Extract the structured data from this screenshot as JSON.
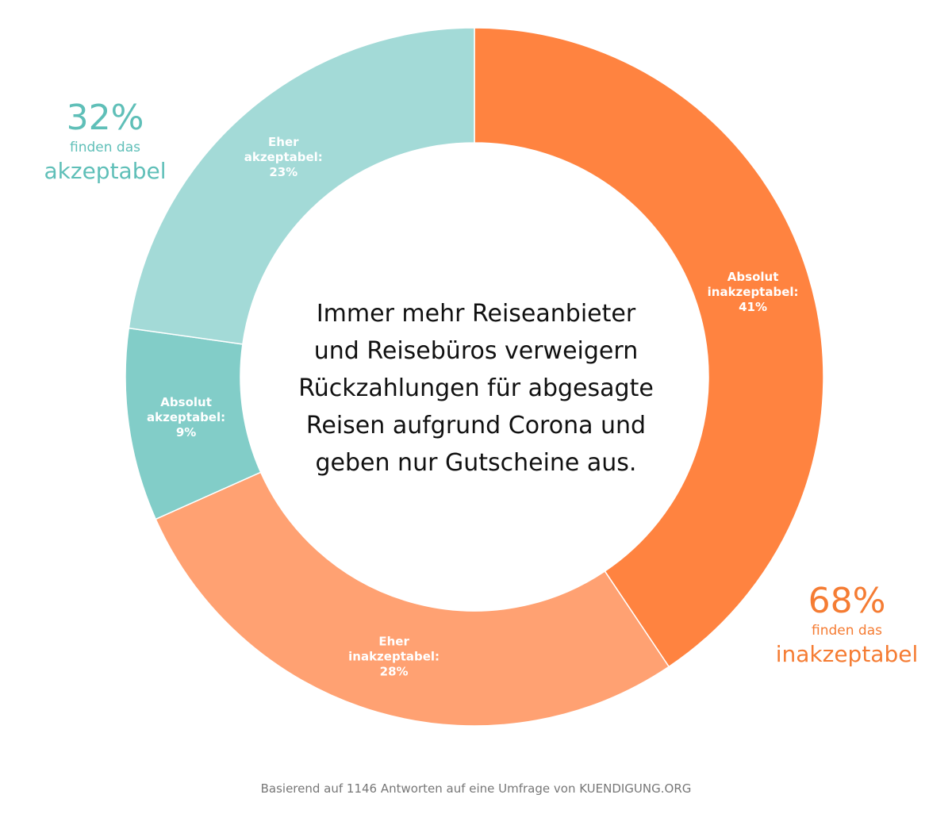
{
  "chart_data": {
    "type": "pie",
    "title": "Immer mehr Reiseanbieter und Reisebüros verweigern Rückzahlungen für abgesagte Reisen aufgrund Corona und geben nur Gutscheine aus.",
    "slices": [
      {
        "label_lines": [
          "Absolut",
          "inakzeptabel:",
          "41%"
        ],
        "value": 41,
        "color": "#ff8340"
      },
      {
        "label_lines": [
          "Eher",
          "inakzeptabel:",
          "28%"
        ],
        "value": 28,
        "color": "#ffa172"
      },
      {
        "label_lines": [
          "Absolut",
          "akzeptabel:",
          "9%"
        ],
        "value": 9,
        "color": "#82cdc8"
      },
      {
        "label_lines": [
          "Eher",
          "akzeptabel:",
          "23%"
        ],
        "value": 23,
        "color": "#a3dad7"
      }
    ]
  },
  "title_lines": [
    "Immer mehr Reiseanbieter",
    "und Reisebüros verweigern",
    "Rückzahlungen für abgesagte",
    "Reisen aufgrund Corona und",
    "geben nur Gutscheine aus."
  ],
  "summary": {
    "acceptable": {
      "percent": "32%",
      "text": "finden das",
      "word": "akzeptabel",
      "color": "#5fbfb8"
    },
    "unacceptable": {
      "percent": "68%",
      "text": "finden das",
      "word": "inakzeptabel",
      "color": "#f57c33"
    }
  },
  "footer": "Basierend auf 1146 Antworten auf eine Umfrage von KUENDIGUNG.ORG"
}
